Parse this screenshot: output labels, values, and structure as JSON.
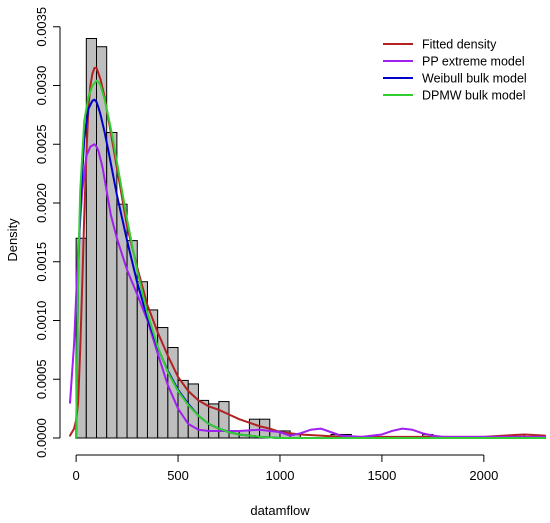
{
  "chart_data": {
    "type": "bar",
    "title": "",
    "xlabel": "datamflow",
    "ylabel": "Density",
    "xlim": [
      -30,
      2300
    ],
    "ylim": [
      0,
      0.0036
    ],
    "x_ticks": [
      0,
      500,
      1000,
      1500,
      2000
    ],
    "x_tick_labels": [
      "0",
      "500",
      "1000",
      "1500",
      "2000"
    ],
    "y_ticks": [
      0,
      0.0005,
      0.001,
      0.0015,
      0.002,
      0.0025,
      0.003,
      0.0035
    ],
    "y_tick_labels": [
      "0.0000",
      "0.0005",
      "0.0010",
      "0.0015",
      "0.0020",
      "0.0025",
      "0.0030",
      "0.0035"
    ],
    "grid": false,
    "legend_position": "top-right",
    "histogram": {
      "bin_width": 50,
      "fill": "#bebebe",
      "bins": [
        {
          "x0": 0,
          "density": 0.0017
        },
        {
          "x0": 50,
          "density": 0.0034
        },
        {
          "x0": 100,
          "density": 0.00333
        },
        {
          "x0": 150,
          "density": 0.0026
        },
        {
          "x0": 200,
          "density": 0.00199
        },
        {
          "x0": 250,
          "density": 0.00168
        },
        {
          "x0": 300,
          "density": 0.00133
        },
        {
          "x0": 350,
          "density": 0.00109
        },
        {
          "x0": 400,
          "density": 0.00094
        },
        {
          "x0": 450,
          "density": 0.00077
        },
        {
          "x0": 500,
          "density": 0.00049
        },
        {
          "x0": 550,
          "density": 0.00046
        },
        {
          "x0": 600,
          "density": 0.00032
        },
        {
          "x0": 650,
          "density": 0.00029
        },
        {
          "x0": 700,
          "density": 0.00031
        },
        {
          "x0": 750,
          "density": 6e-05
        },
        {
          "x0": 800,
          "density": 6e-05
        },
        {
          "x0": 850,
          "density": 0.00016
        },
        {
          "x0": 900,
          "density": 0.00016
        },
        {
          "x0": 950,
          "density": 6e-05
        },
        {
          "x0": 1000,
          "density": 6e-05
        },
        {
          "x0": 1050,
          "density": 3e-05
        },
        {
          "x0": 1100,
          "density": 0.0
        },
        {
          "x0": 1150,
          "density": 0.0
        },
        {
          "x0": 1200,
          "density": 0.0
        },
        {
          "x0": 1250,
          "density": 3e-05
        },
        {
          "x0": 1300,
          "density": 3e-05
        },
        {
          "x0": 1700,
          "density": 3e-05
        },
        {
          "x0": 2150,
          "density": 3e-05
        }
      ]
    },
    "series": [
      {
        "name": "Fitted density",
        "color": "#b22222",
        "x": [
          -30,
          -10,
          0,
          10,
          20,
          30,
          40,
          50,
          60,
          70,
          80,
          90,
          100,
          110,
          120,
          140,
          160,
          180,
          200,
          250,
          300,
          350,
          400,
          450,
          500,
          550,
          600,
          650,
          700,
          750,
          800,
          850,
          900,
          950,
          1000,
          1100,
          1200,
          1300,
          1400,
          1500,
          1700,
          1900,
          2000,
          2100,
          2200,
          2300
        ],
        "y": [
          2e-05,
          8e-05,
          0.00015,
          0.0003,
          0.00075,
          0.0013,
          0.0019,
          0.0024,
          0.0028,
          0.003,
          0.0031,
          0.00315,
          0.00315,
          0.0031,
          0.00305,
          0.0029,
          0.0027,
          0.0025,
          0.0023,
          0.0018,
          0.00145,
          0.00113,
          0.0009,
          0.0007,
          0.00052,
          0.0004,
          0.00032,
          0.00027,
          0.00024,
          0.0002,
          0.00016,
          0.00013,
          0.0001,
          8e-05,
          5e-05,
          3e-05,
          2e-05,
          1e-05,
          1e-05,
          1e-05,
          1e-05,
          1e-05,
          1e-05,
          2e-05,
          3e-05,
          2e-05
        ]
      },
      {
        "name": "PP extreme model",
        "color": "#a020f0",
        "x": [
          -30,
          -10,
          10,
          30,
          50,
          70,
          90,
          100,
          110,
          130,
          150,
          170,
          200,
          250,
          300,
          350,
          400,
          450,
          500,
          550,
          600,
          650,
          700,
          800,
          900,
          1000,
          1050,
          1100,
          1150,
          1200,
          1250,
          1300,
          1400,
          1500,
          1550,
          1600,
          1650,
          1700,
          1750,
          1800,
          2000,
          2300
        ],
        "y": [
          0.0003,
          0.0008,
          0.0016,
          0.0021,
          0.0024,
          0.00248,
          0.0025,
          0.00248,
          0.00244,
          0.0023,
          0.0021,
          0.0019,
          0.0017,
          0.00143,
          0.00122,
          0.001,
          0.00072,
          0.00045,
          0.00025,
          0.00012,
          7e-05,
          6e-05,
          6e-05,
          6e-05,
          7e-05,
          5e-05,
          2e-05,
          4e-05,
          7e-05,
          8e-05,
          5e-05,
          2e-05,
          1e-05,
          3e-05,
          6e-05,
          8e-05,
          7e-05,
          4e-05,
          2e-05,
          1e-05,
          1e-05,
          1e-05
        ]
      },
      {
        "name": "Weibull bulk model",
        "color": "#0000cd",
        "x": [
          0,
          10,
          20,
          40,
          60,
          80,
          90,
          100,
          110,
          120,
          140,
          160,
          180,
          200,
          250,
          300,
          350,
          400,
          450,
          500,
          550,
          600,
          650,
          700,
          750,
          800,
          900,
          1000,
          1200,
          1500,
          2000,
          2300
        ],
        "y": [
          0.0,
          0.0014,
          0.00195,
          0.00255,
          0.0028,
          0.00287,
          0.00288,
          0.00286,
          0.00281,
          0.00275,
          0.0026,
          0.00243,
          0.00225,
          0.00207,
          0.00168,
          0.00132,
          0.00102,
          0.00077,
          0.00057,
          0.00041,
          0.00029,
          0.00019,
          0.00012,
          8e-05,
          5e-05,
          3e-05,
          1e-05,
          0.0,
          0.0,
          0.0,
          0.0,
          0.0
        ]
      },
      {
        "name": "DPMW bulk model",
        "color": "#32cd32",
        "x": [
          0,
          10,
          20,
          40,
          60,
          80,
          100,
          110,
          120,
          140,
          160,
          180,
          200,
          250,
          300,
          350,
          400,
          450,
          500,
          550,
          600,
          650,
          700,
          750,
          800,
          900,
          1000,
          1500,
          2300
        ],
        "y": [
          0.0,
          0.0014,
          0.0021,
          0.0027,
          0.0029,
          0.003,
          0.00304,
          0.00303,
          0.003,
          0.00288,
          0.00272,
          0.00255,
          0.00235,
          0.00186,
          0.00142,
          0.00106,
          0.00078,
          0.00056,
          0.0004,
          0.00028,
          0.00019,
          0.00012,
          8e-05,
          5e-05,
          3e-05,
          1e-05,
          0.0,
          0.0,
          0.0
        ]
      }
    ]
  }
}
